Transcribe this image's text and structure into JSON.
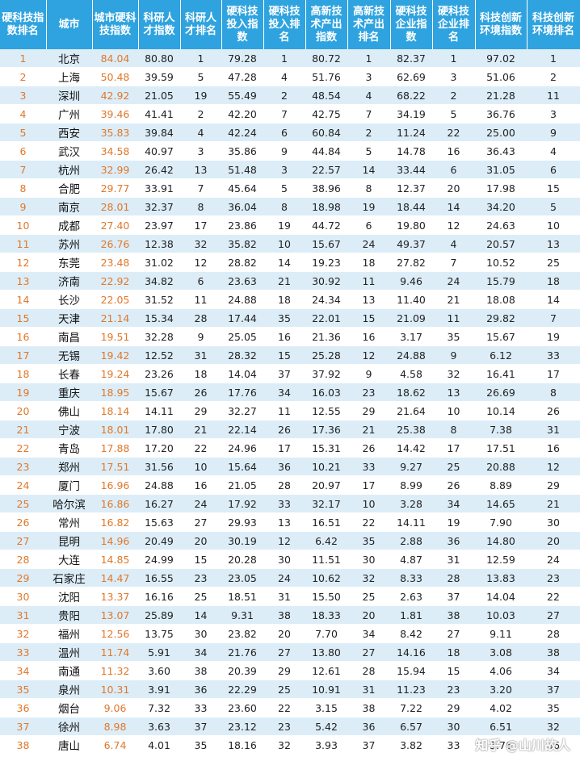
{
  "table": {
    "headers": [
      "硬科技指数排名",
      "城市",
      "城市硬科技指数",
      "科研人才指数",
      "科研人才排名",
      "硬科技投入指数",
      "硬科技投入排名",
      "高新技术产出指数",
      "高新技术产出排名",
      "硬科技企业指数",
      "硬科技企业排名",
      "科技创新环境指数",
      "科技创新环境排名"
    ],
    "rows": [
      [
        "1",
        "北京",
        "84.04",
        "80.80",
        "1",
        "79.28",
        "1",
        "80.72",
        "1",
        "82.37",
        "1",
        "97.02",
        "1"
      ],
      [
        "2",
        "上海",
        "50.48",
        "39.59",
        "5",
        "47.28",
        "4",
        "51.76",
        "3",
        "62.69",
        "3",
        "51.06",
        "2"
      ],
      [
        "3",
        "深圳",
        "42.92",
        "21.05",
        "19",
        "55.49",
        "2",
        "48.54",
        "4",
        "68.22",
        "2",
        "21.28",
        "11"
      ],
      [
        "4",
        "广州",
        "39.46",
        "41.41",
        "2",
        "42.20",
        "7",
        "42.75",
        "7",
        "34.19",
        "5",
        "36.76",
        "3"
      ],
      [
        "5",
        "西安",
        "35.83",
        "39.84",
        "4",
        "42.24",
        "6",
        "60.84",
        "2",
        "11.24",
        "22",
        "25.00",
        "9"
      ],
      [
        "6",
        "武汉",
        "34.58",
        "40.97",
        "3",
        "35.86",
        "9",
        "44.84",
        "5",
        "14.78",
        "16",
        "36.43",
        "4"
      ],
      [
        "7",
        "杭州",
        "32.99",
        "26.42",
        "13",
        "51.48",
        "3",
        "22.57",
        "14",
        "33.44",
        "6",
        "31.05",
        "6"
      ],
      [
        "8",
        "合肥",
        "29.77",
        "33.91",
        "7",
        "45.64",
        "5",
        "38.96",
        "8",
        "12.37",
        "20",
        "17.98",
        "15"
      ],
      [
        "9",
        "南京",
        "28.01",
        "32.37",
        "8",
        "36.04",
        "8",
        "18.98",
        "19",
        "18.44",
        "14",
        "34.20",
        "5"
      ],
      [
        "10",
        "成都",
        "27.40",
        "23.97",
        "17",
        "23.86",
        "19",
        "44.72",
        "6",
        "19.80",
        "12",
        "24.63",
        "10"
      ],
      [
        "11",
        "苏州",
        "26.76",
        "12.38",
        "32",
        "35.82",
        "10",
        "15.67",
        "24",
        "49.37",
        "4",
        "20.57",
        "13"
      ],
      [
        "12",
        "东莞",
        "23.48",
        "31.02",
        "12",
        "28.82",
        "14",
        "19.23",
        "18",
        "27.82",
        "7",
        "10.52",
        "25"
      ],
      [
        "13",
        "济南",
        "22.92",
        "34.82",
        "6",
        "23.63",
        "21",
        "30.92",
        "11",
        "9.46",
        "24",
        "15.79",
        "18"
      ],
      [
        "14",
        "长沙",
        "22.05",
        "31.52",
        "11",
        "24.88",
        "18",
        "24.34",
        "13",
        "11.40",
        "21",
        "18.08",
        "14"
      ],
      [
        "15",
        "天津",
        "21.14",
        "15.34",
        "28",
        "17.44",
        "35",
        "22.01",
        "15",
        "21.09",
        "11",
        "29.82",
        "7"
      ],
      [
        "16",
        "南昌",
        "19.51",
        "32.28",
        "9",
        "25.05",
        "16",
        "21.36",
        "16",
        "3.17",
        "35",
        "15.67",
        "19"
      ],
      [
        "17",
        "无锡",
        "19.42",
        "12.52",
        "31",
        "28.32",
        "15",
        "25.28",
        "12",
        "24.88",
        "9",
        "6.12",
        "33"
      ],
      [
        "18",
        "长春",
        "19.24",
        "23.26",
        "18",
        "14.04",
        "37",
        "37.92",
        "9",
        "4.58",
        "32",
        "16.41",
        "17"
      ],
      [
        "19",
        "重庆",
        "18.95",
        "15.67",
        "26",
        "17.76",
        "34",
        "16.03",
        "23",
        "18.62",
        "13",
        "26.69",
        "8"
      ],
      [
        "20",
        "佛山",
        "18.14",
        "14.11",
        "29",
        "32.27",
        "11",
        "12.55",
        "29",
        "21.64",
        "10",
        "10.14",
        "26"
      ],
      [
        "21",
        "宁波",
        "18.01",
        "17.80",
        "21",
        "22.14",
        "26",
        "17.36",
        "21",
        "25.38",
        "8",
        "7.38",
        "31"
      ],
      [
        "22",
        "青岛",
        "17.88",
        "17.20",
        "22",
        "24.96",
        "17",
        "15.31",
        "26",
        "14.42",
        "17",
        "17.51",
        "16"
      ],
      [
        "23",
        "郑州",
        "17.51",
        "31.56",
        "10",
        "15.64",
        "36",
        "10.21",
        "33",
        "9.27",
        "25",
        "20.88",
        "12"
      ],
      [
        "24",
        "厦门",
        "16.96",
        "24.88",
        "16",
        "21.05",
        "28",
        "20.97",
        "17",
        "8.99",
        "26",
        "8.89",
        "29"
      ],
      [
        "25",
        "哈尔滨",
        "16.86",
        "16.27",
        "24",
        "17.92",
        "33",
        "32.17",
        "10",
        "3.28",
        "34",
        "14.65",
        "21"
      ],
      [
        "26",
        "常州",
        "16.82",
        "15.63",
        "27",
        "29.93",
        "13",
        "16.51",
        "22",
        "14.11",
        "19",
        "7.90",
        "30"
      ],
      [
        "27",
        "昆明",
        "14.96",
        "20.49",
        "20",
        "30.19",
        "12",
        "6.42",
        "35",
        "2.88",
        "36",
        "14.80",
        "20"
      ],
      [
        "28",
        "大连",
        "14.85",
        "24.99",
        "15",
        "20.28",
        "30",
        "11.51",
        "30",
        "4.87",
        "31",
        "12.59",
        "24"
      ],
      [
        "29",
        "石家庄",
        "14.47",
        "16.55",
        "23",
        "23.05",
        "24",
        "10.62",
        "32",
        "8.33",
        "28",
        "13.83",
        "23"
      ],
      [
        "30",
        "沈阳",
        "13.37",
        "16.16",
        "25",
        "18.51",
        "31",
        "15.50",
        "25",
        "2.63",
        "37",
        "14.04",
        "22"
      ],
      [
        "31",
        "贵阳",
        "13.07",
        "25.89",
        "14",
        "9.31",
        "38",
        "18.33",
        "20",
        "1.81",
        "38",
        "10.03",
        "27"
      ],
      [
        "32",
        "福州",
        "12.56",
        "13.75",
        "30",
        "23.82",
        "20",
        "7.70",
        "34",
        "8.42",
        "27",
        "9.11",
        "28"
      ],
      [
        "33",
        "温州",
        "11.74",
        "5.91",
        "34",
        "21.76",
        "27",
        "13.80",
        "27",
        "14.16",
        "18",
        "3.08",
        "38"
      ],
      [
        "34",
        "南通",
        "11.32",
        "3.60",
        "38",
        "20.39",
        "29",
        "12.61",
        "28",
        "15.94",
        "15",
        "4.06",
        "34"
      ],
      [
        "35",
        "泉州",
        "10.31",
        "3.91",
        "36",
        "22.29",
        "25",
        "10.91",
        "31",
        "11.23",
        "23",
        "3.20",
        "37"
      ],
      [
        "36",
        "烟台",
        "9.06",
        "7.32",
        "33",
        "23.60",
        "22",
        "3.15",
        "38",
        "7.22",
        "29",
        "4.02",
        "35"
      ],
      [
        "37",
        "徐州",
        "8.98",
        "3.63",
        "37",
        "23.12",
        "23",
        "5.42",
        "36",
        "6.57",
        "30",
        "6.51",
        "32"
      ],
      [
        "38",
        "唐山",
        "6.74",
        "4.01",
        "35",
        "18.16",
        "32",
        "3.93",
        "37",
        "3.82",
        "33",
        "3.76",
        "36"
      ]
    ]
  },
  "watermark": "知乎 @山川故人"
}
